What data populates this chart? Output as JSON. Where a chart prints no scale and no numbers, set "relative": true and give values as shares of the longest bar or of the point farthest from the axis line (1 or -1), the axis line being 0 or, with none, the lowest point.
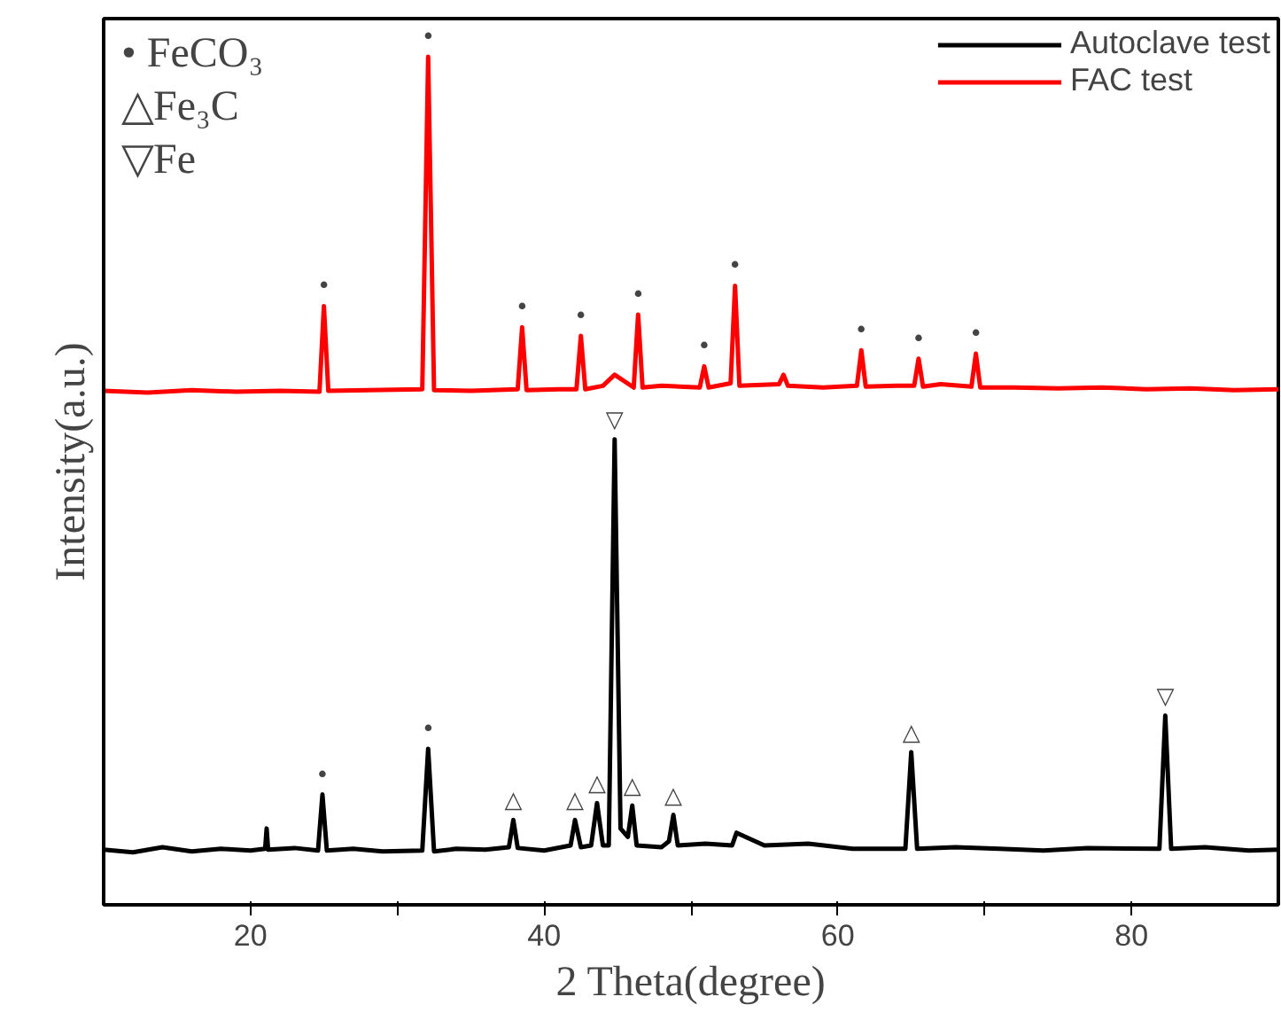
{
  "chart_data": {
    "type": "line",
    "relative": true,
    "xlabel": "2 Theta(degree)",
    "ylabel": "Intensity(a.u.)",
    "xlim": [
      10,
      90
    ],
    "xticks": [
      20,
      {
        "value": 30,
        "label": null
      },
      40,
      {
        "value": 50,
        "label": null
      },
      60,
      {
        "value": 70,
        "label": null
      },
      80
    ],
    "grid": false,
    "legend": "top right",
    "line_style": "solid",
    "marker": "none",
    "series": [
      {
        "name": "Autoclave test",
        "color": "#000000",
        "x": [
          10,
          12,
          14,
          16,
          18,
          20,
          21,
          21.1,
          21.2,
          23,
          24.6,
          24.9,
          25.2,
          27,
          29,
          31.7,
          32.1,
          32.5,
          34,
          36,
          37.6,
          37.9,
          38.2,
          40,
          41.8,
          42.1,
          42.5,
          43.2,
          43.6,
          44.0,
          44.4,
          44.8,
          45.2,
          45.7,
          46.0,
          46.3,
          48.0,
          48.5,
          48.8,
          49.1,
          51,
          52.8,
          53.1,
          55,
          58,
          61,
          64.6,
          65.0,
          65.4,
          68,
          71,
          74,
          77,
          81.9,
          82.3,
          82.7,
          85,
          88,
          90
        ],
        "values": [
          0.065,
          0.062,
          0.068,
          0.063,
          0.066,
          0.064,
          0.066,
          0.09,
          0.065,
          0.067,
          0.064,
          0.13,
          0.064,
          0.066,
          0.063,
          0.064,
          0.184,
          0.063,
          0.066,
          0.065,
          0.068,
          0.1,
          0.067,
          0.064,
          0.07,
          0.1,
          0.068,
          0.07,
          0.12,
          0.07,
          0.07,
          0.549,
          0.09,
          0.08,
          0.117,
          0.07,
          0.068,
          0.075,
          0.106,
          0.07,
          0.072,
          0.07,
          0.085,
          0.07,
          0.072,
          0.066,
          0.066,
          0.18,
          0.066,
          0.068,
          0.066,
          0.064,
          0.067,
          0.066,
          0.223,
          0.066,
          0.068,
          0.064,
          0.065
        ]
      },
      {
        "name": "FAC test",
        "color": "#ff0000",
        "x": [
          10,
          13,
          16,
          19,
          22,
          24.7,
          25.0,
          25.3,
          28,
          31.7,
          32.1,
          32.5,
          35,
          38.2,
          38.5,
          38.8,
          41,
          42.2,
          42.5,
          42.8,
          44,
          44.8,
          46.1,
          46.4,
          46.7,
          48,
          50.6,
          50.9,
          51.2,
          52.7,
          53.0,
          53.3,
          56,
          56.3,
          56.6,
          59,
          61.3,
          61.6,
          61.9,
          64,
          65.2,
          65.5,
          65.8,
          67,
          69.1,
          69.4,
          69.7,
          72,
          75,
          78,
          81,
          84,
          87,
          90
        ],
        "values": [
          0.606,
          0.604,
          0.607,
          0.605,
          0.606,
          0.605,
          0.706,
          0.606,
          0.607,
          0.608,
          1.0,
          0.607,
          0.606,
          0.608,
          0.681,
          0.607,
          0.608,
          0.608,
          0.671,
          0.608,
          0.612,
          0.625,
          0.61,
          0.696,
          0.61,
          0.612,
          0.61,
          0.635,
          0.61,
          0.615,
          0.73,
          0.612,
          0.614,
          0.625,
          0.612,
          0.61,
          0.612,
          0.654,
          0.611,
          0.612,
          0.612,
          0.644,
          0.611,
          0.614,
          0.611,
          0.65,
          0.61,
          0.61,
          0.609,
          0.61,
          0.608,
          0.609,
          0.607,
          0.608
        ]
      }
    ],
    "annotations": [
      "• FeCO₃",
      "△Fe₃C",
      "▽Fe",
      {
        "text": "•",
        "x": 24.9,
        "y": 0.13
      },
      {
        "text": "•",
        "x": 32.1,
        "y": 0.184
      },
      {
        "text": "△",
        "x": 37.9,
        "y": 0.1
      },
      {
        "text": "△",
        "x": 42.1,
        "y": 0.1
      },
      {
        "text": "△",
        "x": 43.6,
        "y": 0.12
      },
      {
        "text": "△",
        "x": 46.0,
        "y": 0.117
      },
      {
        "text": "△",
        "x": 48.8,
        "y": 0.106
      },
      {
        "text": "△",
        "x": 65.0,
        "y": 0.18
      },
      {
        "text": "▽",
        "x": 44.8,
        "y": 0.549
      },
      {
        "text": "▽",
        "x": 82.3,
        "y": 0.223
      },
      {
        "text": "•",
        "x": 25.0,
        "y": 0.706
      },
      {
        "text": "•",
        "x": 32.1,
        "y": 1.0
      },
      {
        "text": "•",
        "x": 38.5,
        "y": 0.681
      },
      {
        "text": "•",
        "x": 42.5,
        "y": 0.671
      },
      {
        "text": "•",
        "x": 46.4,
        "y": 0.696
      },
      {
        "text": "•",
        "x": 50.9,
        "y": 0.635
      },
      {
        "text": "•",
        "x": 53.0,
        "y": 0.73
      },
      {
        "text": "•",
        "x": 61.6,
        "y": 0.654
      },
      {
        "text": "•",
        "x": 65.5,
        "y": 0.644
      },
      {
        "text": "•",
        "x": 69.4,
        "y": 0.65
      }
    ]
  }
}
